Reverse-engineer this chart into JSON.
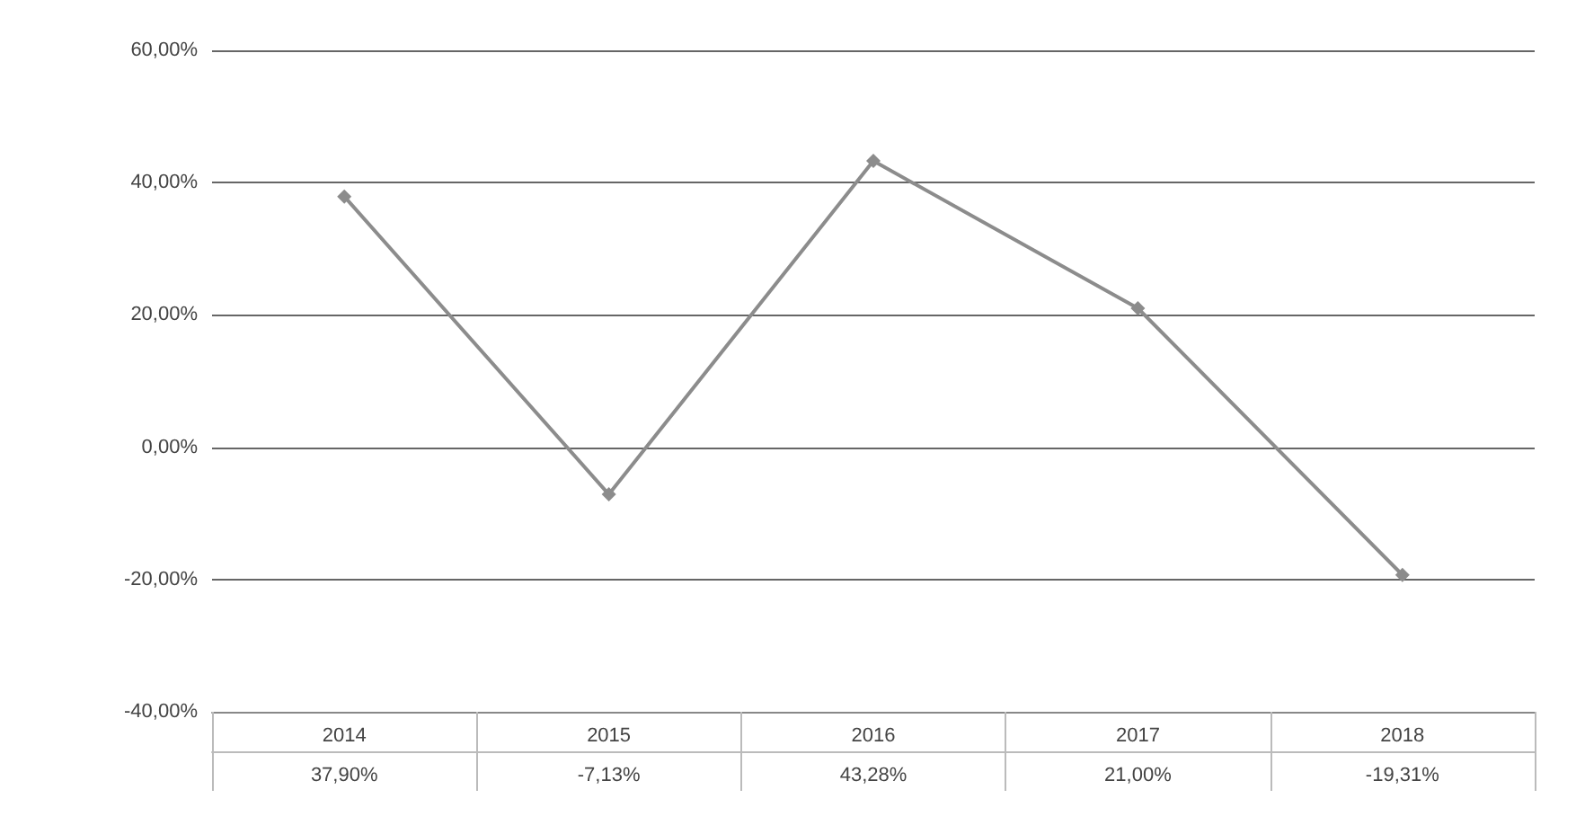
{
  "chart_data": {
    "type": "line",
    "categories": [
      "2014",
      "2015",
      "2016",
      "2017",
      "2018"
    ],
    "series": [
      {
        "color": "#8c8c8c",
        "values": [
          37.9,
          -7.13,
          43.28,
          21.0,
          -19.31
        ],
        "value_labels": [
          "37,90%",
          "-7,13%",
          "43,28%",
          "21,00%",
          "-19,31%"
        ]
      }
    ],
    "ylim": [
      -40,
      60
    ],
    "yticks": [
      {
        "value": -40,
        "label": "-40,00%"
      },
      {
        "value": -20,
        "label": "-20,00%"
      },
      {
        "value": 0,
        "label": "0,00%"
      },
      {
        "value": 20,
        "label": "20,00%"
      },
      {
        "value": 40,
        "label": "40,00%"
      },
      {
        "value": 60,
        "label": "60,00%"
      }
    ],
    "grid": "y",
    "marker": "diamond",
    "line_style": "solid"
  }
}
